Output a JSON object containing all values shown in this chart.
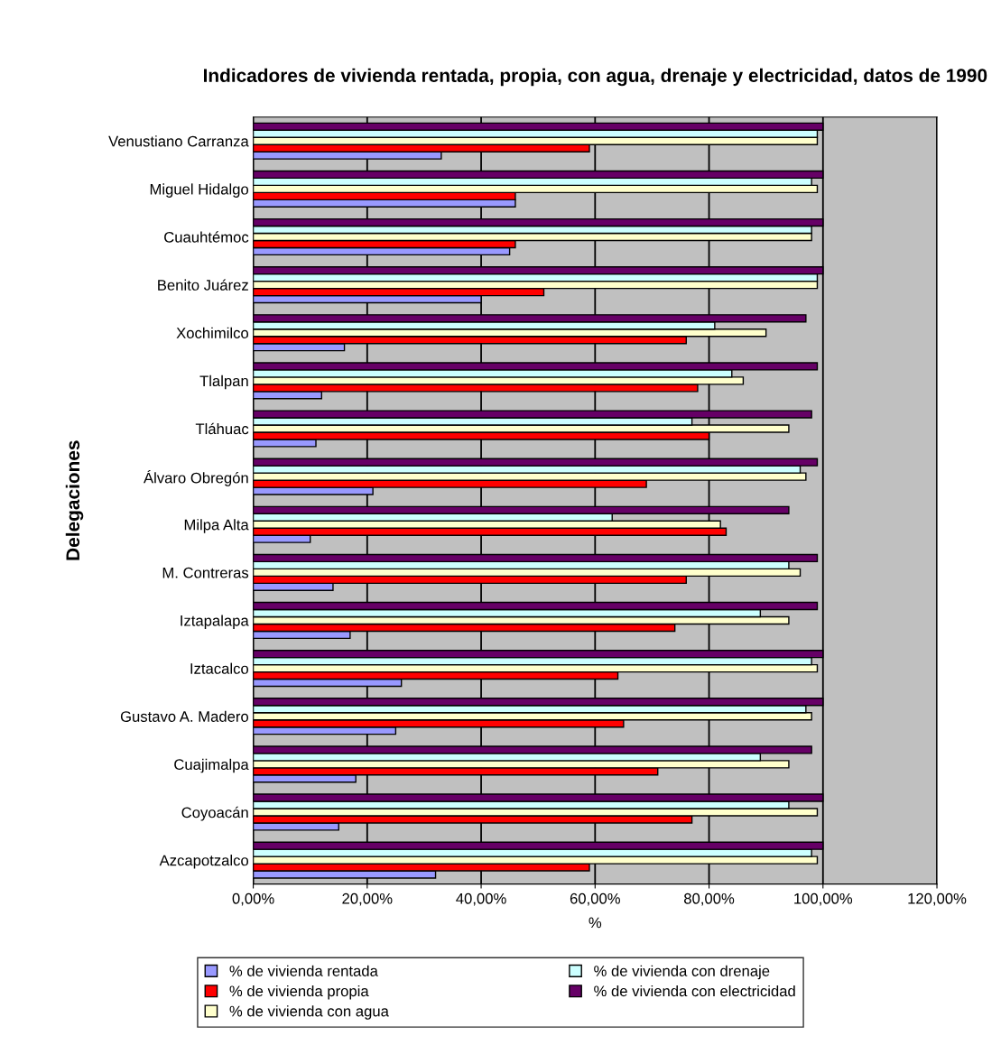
{
  "chart_data": {
    "type": "bar",
    "orientation": "horizontal",
    "title": "Indicadores de vivienda rentada, propia, con agua, drenaje y electricidad, datos de 1990",
    "xlabel": "%",
    "ylabel": "Delegaciones",
    "categories": [
      "Venustiano Carranza",
      "Miguel Hidalgo",
      "Cuauhtémoc",
      "Benito Juárez",
      "Xochimilco",
      "Tlalpan",
      "Tláhuac",
      "Álvaro Obregón",
      "Milpa Alta",
      "M. Contreras",
      "Iztapalapa",
      "Iztacalco",
      "Gustavo A. Madero",
      "Cuajimalpa",
      "Coyoacán",
      "Azcapotzalco"
    ],
    "series": [
      {
        "name": "% de vivienda rentada",
        "color": "#9999ff",
        "values": [
          33,
          46,
          45,
          40,
          16,
          12,
          11,
          21,
          10,
          14,
          17,
          26,
          25,
          18,
          15,
          32
        ]
      },
      {
        "name": "% de vivienda propia",
        "color": "#ff0000",
        "values": [
          59,
          46,
          46,
          51,
          76,
          78,
          80,
          69,
          83,
          76,
          74,
          64,
          65,
          71,
          77,
          59
        ]
      },
      {
        "name": "% de vivienda con agua",
        "color": "#ffffcc",
        "values": [
          99,
          99,
          98,
          99,
          90,
          86,
          94,
          97,
          82,
          96,
          94,
          99,
          98,
          94,
          99,
          99
        ]
      },
      {
        "name": "% de vivienda con drenaje",
        "color": "#ccffff",
        "values": [
          99,
          98,
          98,
          99,
          81,
          84,
          77,
          96,
          63,
          94,
          89,
          98,
          97,
          89,
          94,
          98
        ]
      },
      {
        "name": "% de vivienda con electricidad",
        "color": "#660066",
        "values": [
          100,
          100,
          100,
          100,
          97,
          99,
          98,
          99,
          94,
          99,
          99,
          100,
          100,
          98,
          100,
          100
        ]
      }
    ],
    "xlim": [
      0,
      120
    ],
    "xticks": [
      {
        "value": 0,
        "label": "0,00%"
      },
      {
        "value": 20,
        "label": "20,00%"
      },
      {
        "value": 40,
        "label": "40,00%"
      },
      {
        "value": 60,
        "label": "60,00%"
      },
      {
        "value": 80,
        "label": "80,00%"
      },
      {
        "value": 100,
        "label": "100,00%"
      },
      {
        "value": 120,
        "label": "120,00%"
      }
    ],
    "grid": "x",
    "legend": "bottom"
  }
}
